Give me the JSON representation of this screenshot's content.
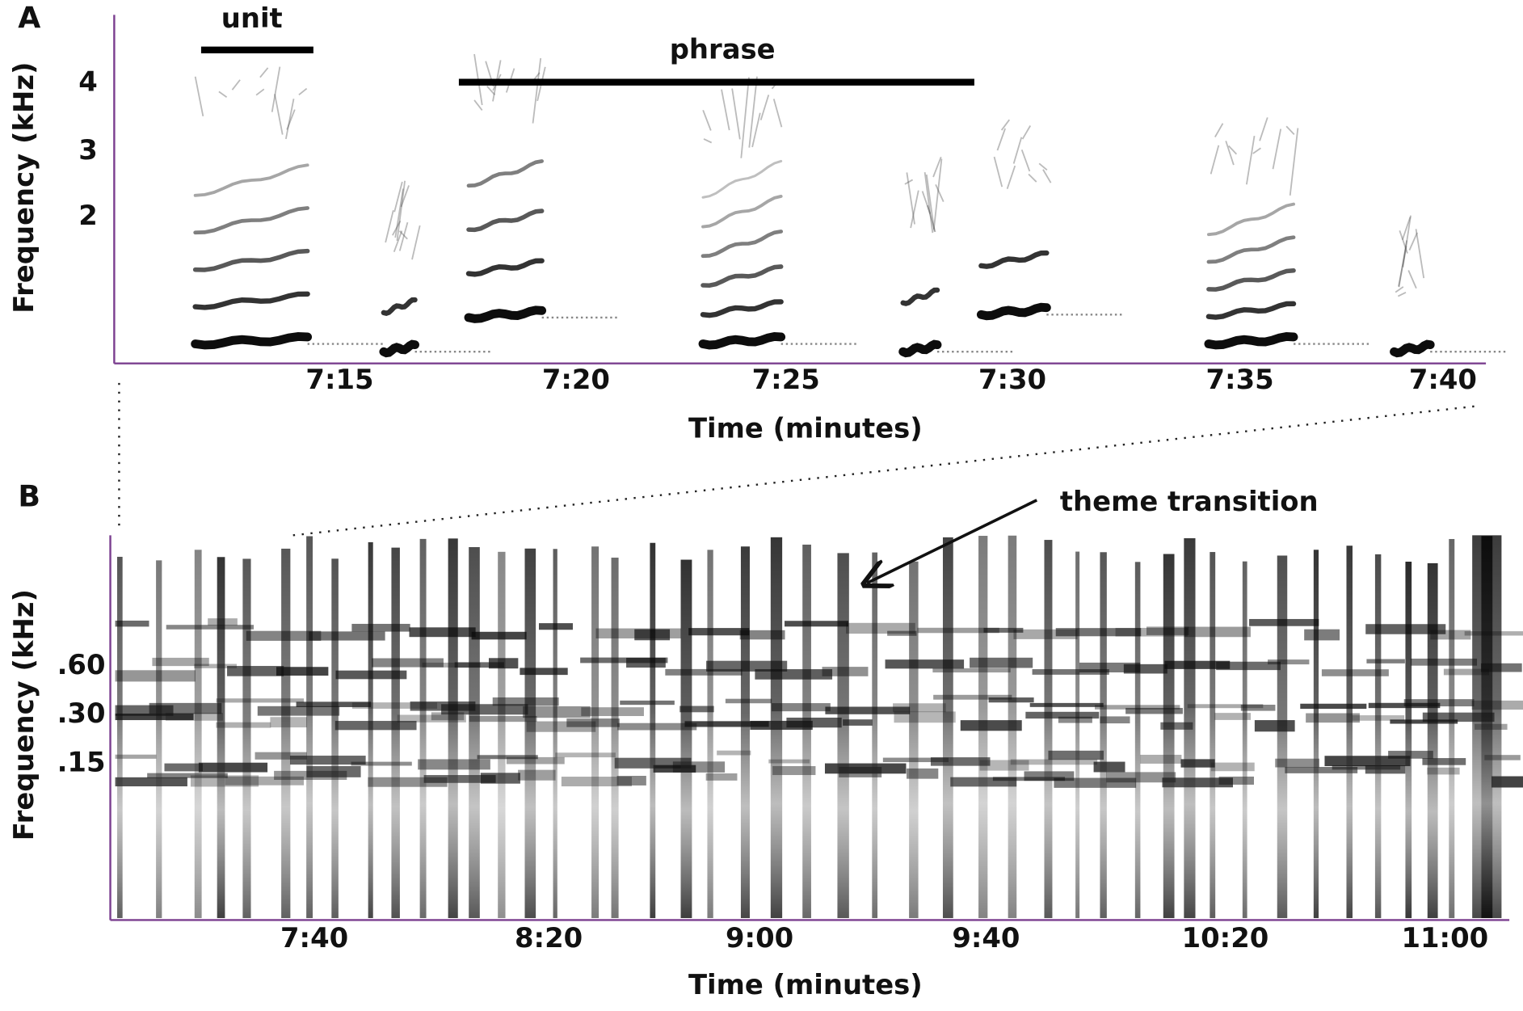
{
  "panels": [
    {
      "label": "A",
      "annotations": [
        "unit",
        "phrase"
      ],
      "y_axis_title": "Frequency (kHz)",
      "y_ticks": [
        "4",
        "3",
        "2"
      ],
      "x_ticks": [
        "7:15",
        "7:20",
        "7:25",
        "7:30",
        "7:35",
        "7:40"
      ],
      "x_axis_title": "Time (minutes)"
    },
    {
      "label": "B",
      "annotations": [
        "theme transition"
      ],
      "y_axis_title": "Frequency (kHz)",
      "y_ticks": [
        ".60",
        ".30",
        ".15"
      ],
      "x_ticks": [
        "7:40",
        "8:20",
        "9:00",
        "9:40",
        "10:20",
        "11:00"
      ],
      "x_axis_title": "Time (minutes)"
    }
  ]
}
